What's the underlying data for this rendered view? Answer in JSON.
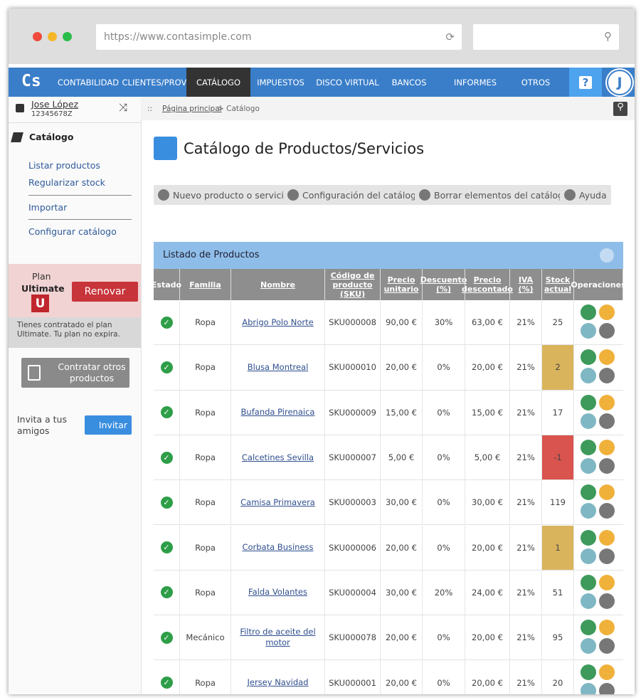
{
  "browser": {
    "url": "https://www.contasimple.com"
  },
  "nav": {
    "logo": "Cs",
    "items": [
      "CONTABILIDAD",
      "CLIENTES/PROV.",
      "CATÁLOGO",
      "IMPUESTOS",
      "DISCO VIRTUAL",
      "BANCOS",
      "INFORMES",
      "OTROS"
    ],
    "active": 2,
    "help": "?",
    "avatar": "J"
  },
  "user": {
    "name": "Jose López",
    "id": "12345678Z"
  },
  "breadcrumb": {
    "prefix": "::",
    "home": "Página principal",
    "current": "> Catálogo"
  },
  "sidebar": {
    "section": "Catálogo",
    "links": [
      "Listar productos",
      "Regularizar stock",
      "Importar",
      "Configurar catálogo"
    ],
    "plan": {
      "label": "Plan",
      "name": "Ultimate",
      "badge": "U",
      "button": "Renovar",
      "note": "Tienes contratado el plan Ultimate. Tu plan no expira."
    },
    "contract": "Contratar otros productos",
    "invite": {
      "text": "Invita a tus amigos",
      "button": "Invitar"
    }
  },
  "page": {
    "title": "Catálogo de Productos/Servicios",
    "toolbar": [
      "Nuevo producto o servicio",
      "Configuración del catálogo",
      "Borrar elementos del catálogo",
      "Ayuda"
    ]
  },
  "table": {
    "title": "Listado de Productos",
    "columns": [
      "Estado",
      "Familia",
      "Nombre",
      "Código de producto (SKU)",
      "Precio unitario",
      "Descuento (%)",
      "Precio descontado",
      "IVA (%)",
      "Stock actual",
      "Operaciones"
    ],
    "rows": [
      {
        "cells": [
          "Ropa",
          "Abrigo Polo Norte",
          "SKU000008",
          "90,00 €",
          "30%",
          "63,00 €",
          "21%",
          "25"
        ]
      },
      {
        "cells": [
          "Ropa",
          "Blusa Montreal",
          "SKU000010",
          "20,00 €",
          "0%",
          "20,00 €",
          "21%",
          "2"
        ],
        "stock_color": "#d9b45c"
      },
      {
        "cells": [
          "Ropa",
          "Bufanda Pirenaica",
          "SKU000009",
          "15,00 €",
          "0%",
          "15,00 €",
          "21%",
          "17"
        ]
      },
      {
        "cells": [
          "Ropa",
          "Calcetines Sevilla",
          "SKU000007",
          "5,00 €",
          "0%",
          "5,00 €",
          "21%",
          "-1"
        ],
        "stock_color": "#d9534f"
      },
      {
        "cells": [
          "Ropa",
          "Camisa Primavera",
          "SKU000003",
          "30,00 €",
          "0%",
          "30,00 €",
          "21%",
          "119"
        ]
      },
      {
        "cells": [
          "Ropa",
          "Corbata Business",
          "SKU000006",
          "20,00 €",
          "0%",
          "20,00 €",
          "21%",
          "1"
        ],
        "stock_color": "#d9b45c"
      },
      {
        "cells": [
          "Ropa",
          "Falda Volantes",
          "SKU000004",
          "30,00 €",
          "20%",
          "24,00 €",
          "21%",
          "51"
        ]
      },
      {
        "cells": [
          "Mecánico",
          "Filtro de aceite del motor",
          "SKU000078",
          "20,00 €",
          "0%",
          "20,00 €",
          "21%",
          "95"
        ]
      },
      {
        "cells": [
          "Ropa",
          "Jersey Navidad",
          "SKU000001",
          "20,00 €",
          "0%",
          "20,00 €",
          "21%",
          "20"
        ]
      }
    ]
  }
}
